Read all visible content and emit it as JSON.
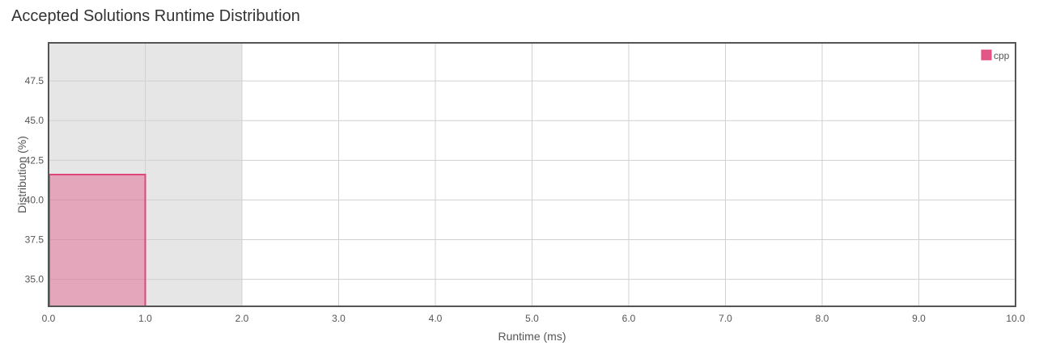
{
  "header": {
    "title": "Accepted Solutions Runtime Distribution"
  },
  "chart_data": {
    "type": "bar",
    "title": "Accepted Solutions Runtime Distribution",
    "xlabel": "Runtime (ms)",
    "ylabel": "Distribution (%)",
    "xlim": [
      0,
      10
    ],
    "ylim": [
      33.3,
      49.9
    ],
    "x_ticks": [
      "0.0",
      "1.0",
      "2.0",
      "3.0",
      "4.0",
      "5.0",
      "6.0",
      "7.0",
      "8.0",
      "9.0",
      "10.0"
    ],
    "y_ticks": [
      "35.0",
      "37.5",
      "40.0",
      "42.5",
      "45.0",
      "47.5"
    ],
    "grid": true,
    "legend_position": "top-right",
    "highlight_range": [
      0,
      2
    ],
    "series": [
      {
        "name": "cpp",
        "color": "#e0457b",
        "bars": [
          {
            "x_start": 0,
            "x_end": 1,
            "value": 41.6
          }
        ]
      }
    ]
  }
}
